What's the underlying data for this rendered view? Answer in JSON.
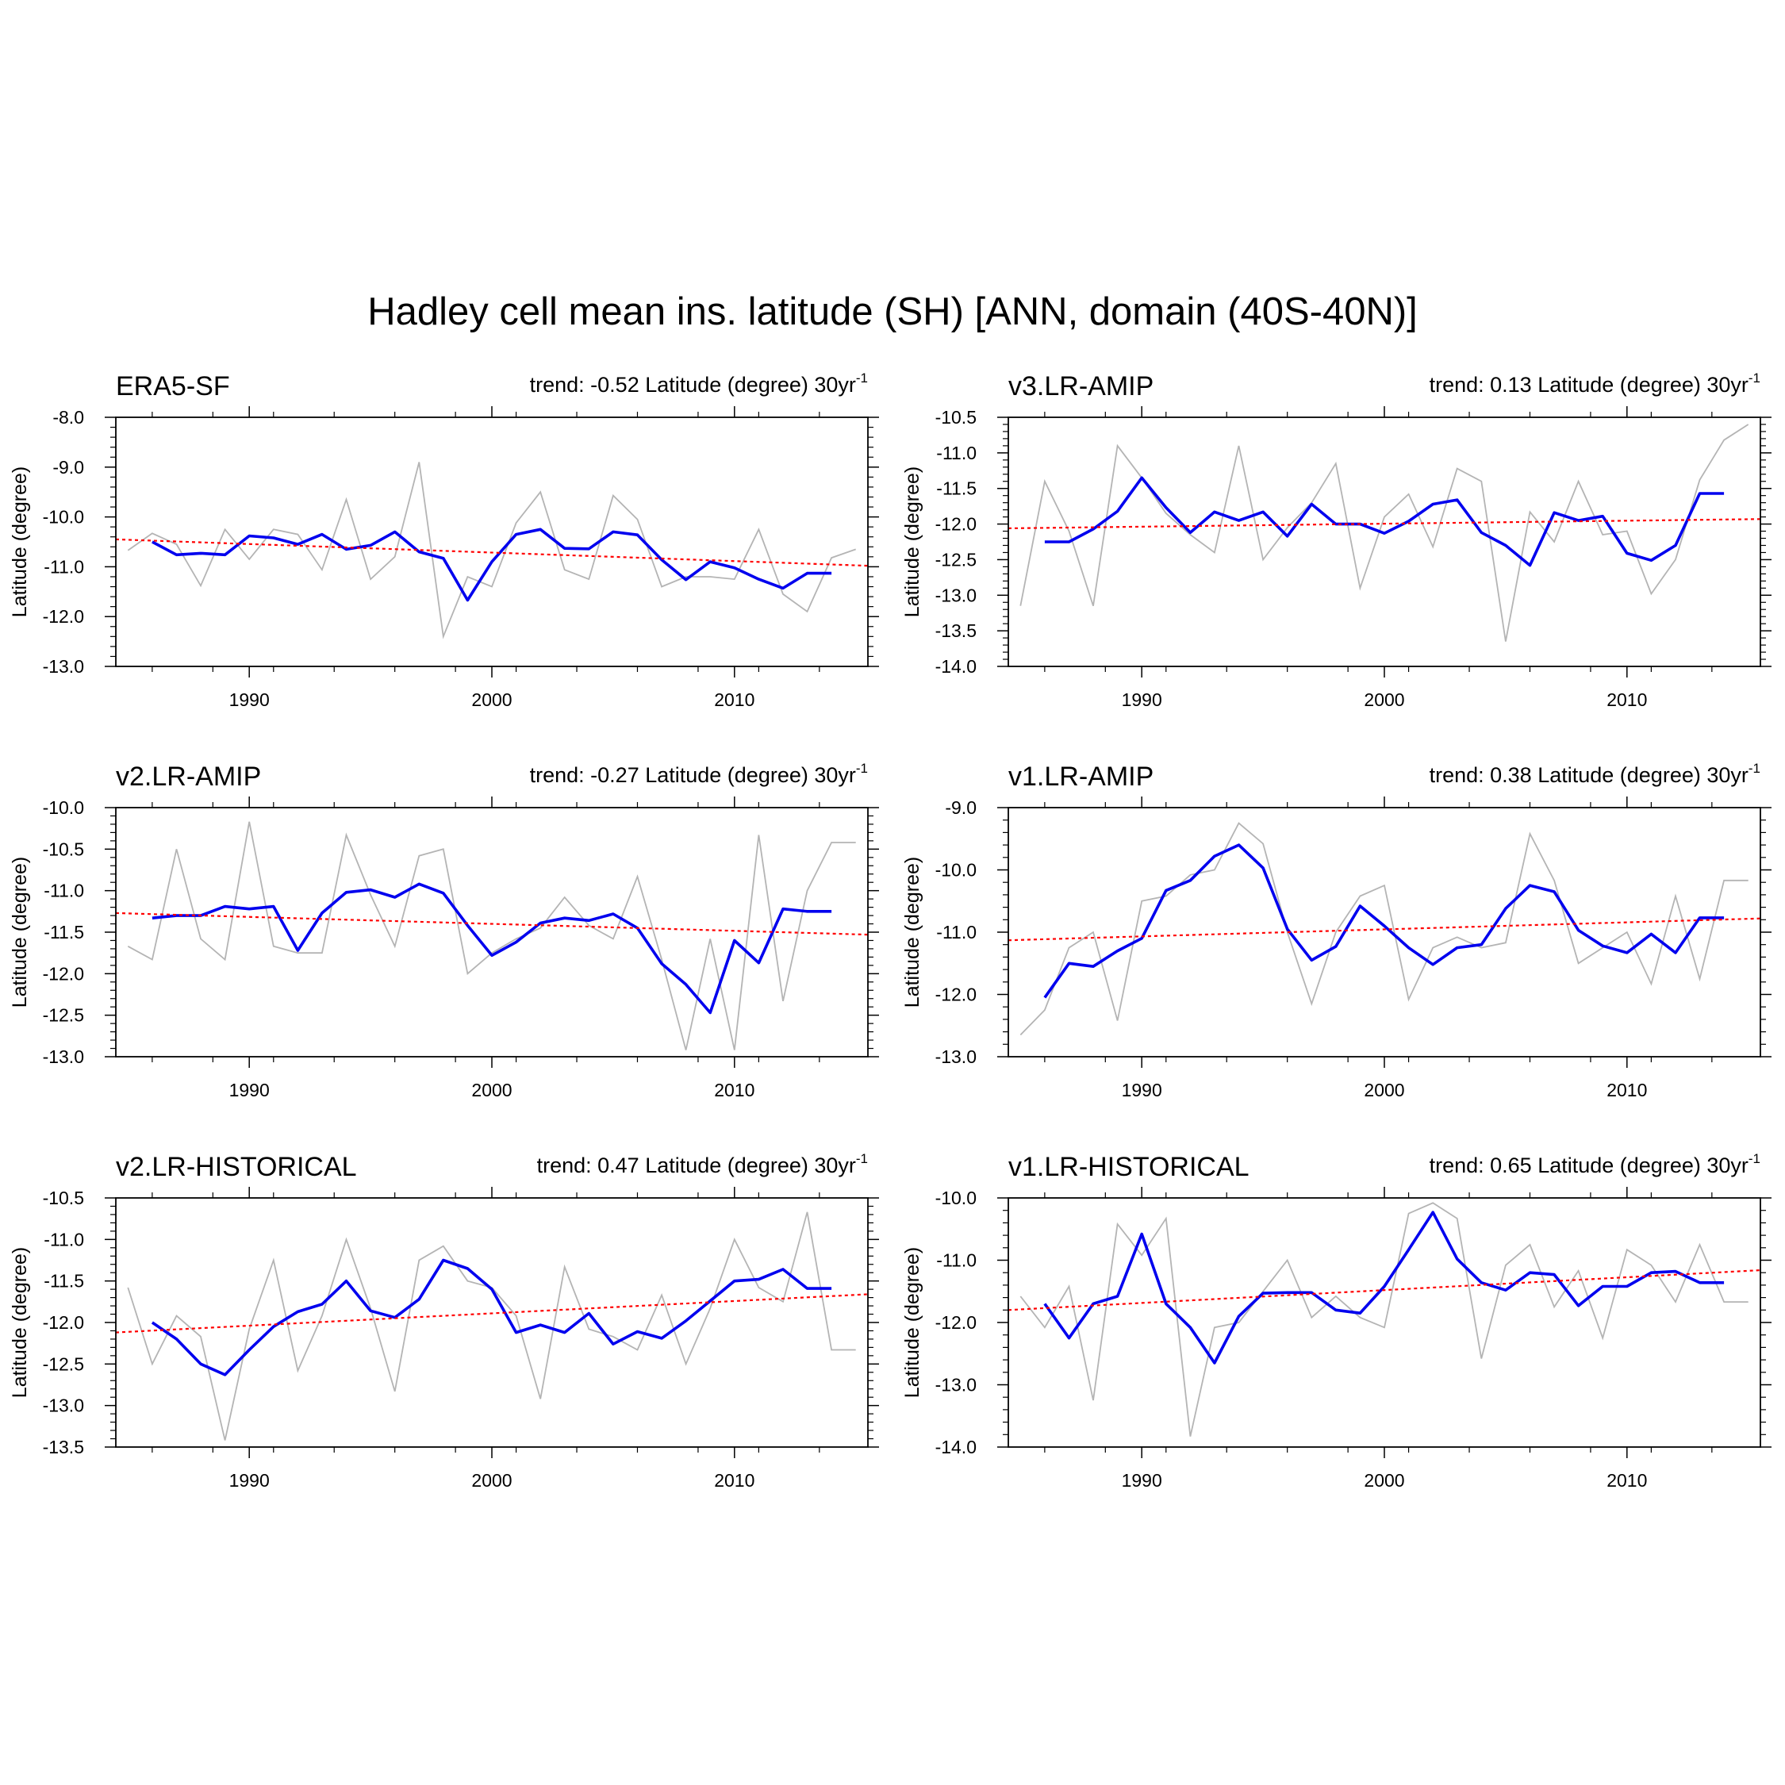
{
  "title": "Hadley cell mean ins. latitude (SH) [ANN, domain (40S-40N)]",
  "colors": {
    "smoothed": "#0000ee",
    "annual": "#b4b4b4",
    "trend": "#ff0000"
  },
  "chart_data": [
    {
      "type": "line",
      "name": "ERA5-SF",
      "trend_label": "trend: -0.52 Latitude (degree) 30yr",
      "trend_sup": "-1",
      "ylabel": "Latitude (degree)",
      "xlim": [
        1984.5,
        2015.5
      ],
      "ylim": [
        -13.0,
        -8.0
      ],
      "ystep": 1.0,
      "ytick_labels": [
        "-8.0",
        "-9.0",
        "-10.0",
        "-11.0",
        "-12.0",
        "-13.0"
      ],
      "xticks": [
        1990,
        2000,
        2010
      ],
      "xtick_labels": [
        "1990",
        "2000",
        "2010"
      ],
      "annual": {
        "x": [
          1985,
          1986,
          1987,
          1988,
          1989,
          1990,
          1991,
          1992,
          1993,
          1994,
          1995,
          1996,
          1997,
          1998,
          1999,
          2000,
          2001,
          2002,
          2003,
          2004,
          2005,
          2006,
          2007,
          2008,
          2009,
          2010,
          2011,
          2012,
          2013,
          2014,
          2015
        ],
        "y": [
          -10.67,
          -10.33,
          -10.55,
          -11.38,
          -10.25,
          -10.85,
          -10.25,
          -10.35,
          -11.06,
          -9.65,
          -11.25,
          -10.8,
          -8.9,
          -12.4,
          -11.2,
          -11.4,
          -10.12,
          -9.5,
          -11.06,
          -11.25,
          -9.57,
          -10.05,
          -11.4,
          -11.2,
          -11.2,
          -11.25,
          -10.25,
          -11.55,
          -11.9,
          -10.82,
          -10.65
        ]
      },
      "smoothed": {
        "x": [
          1986,
          1987,
          1988,
          1989,
          1990,
          1991,
          1992,
          1993,
          1994,
          1995,
          1996,
          1997,
          1998,
          1999,
          2000,
          2001,
          2002,
          2003,
          2004,
          2005,
          2006,
          2007,
          2008,
          2009,
          2010,
          2011,
          2012,
          2013,
          2014
        ],
        "y": [
          -10.5,
          -10.76,
          -10.73,
          -10.76,
          -10.38,
          -10.42,
          -10.55,
          -10.35,
          -10.65,
          -10.57,
          -10.3,
          -10.7,
          -10.83,
          -11.67,
          -10.9,
          -10.35,
          -10.25,
          -10.63,
          -10.64,
          -10.3,
          -10.36,
          -10.86,
          -11.26,
          -10.9,
          -11.02,
          -11.25,
          -11.43,
          -11.13,
          -11.13
        ]
      },
      "trend": {
        "x": [
          1984.5,
          2015.5
        ],
        "y": [
          -10.45,
          -10.98
        ]
      }
    },
    {
      "type": "line",
      "name": "v3.LR-AMIP",
      "trend_label": "trend: 0.13 Latitude (degree) 30yr",
      "trend_sup": "-1",
      "ylabel": "Latitude (degree)",
      "xlim": [
        1984.5,
        2015.5
      ],
      "ylim": [
        -14.0,
        -10.5
      ],
      "ystep": 0.5,
      "ytick_labels": [
        "-10.5",
        "-11.0",
        "-11.5",
        "-12.0",
        "-12.5",
        "-13.0",
        "-13.5",
        "-14.0"
      ],
      "xticks": [
        1990,
        2000,
        2010
      ],
      "xtick_labels": [
        "1990",
        "2000",
        "2010"
      ],
      "annual": {
        "x": [
          1985,
          1986,
          1987,
          1988,
          1989,
          1990,
          1991,
          1992,
          1993,
          1994,
          1995,
          1996,
          1997,
          1998,
          1999,
          2000,
          2001,
          2002,
          2003,
          2004,
          2005,
          2006,
          2007,
          2008,
          2009,
          2010,
          2011,
          2012,
          2013,
          2014,
          2015
        ],
        "y": [
          -13.15,
          -11.4,
          -12.1,
          -13.15,
          -10.9,
          -11.35,
          -11.85,
          -12.15,
          -12.4,
          -10.9,
          -12.5,
          -12.05,
          -11.7,
          -11.15,
          -12.9,
          -11.9,
          -11.58,
          -12.32,
          -11.22,
          -11.4,
          -13.65,
          -11.83,
          -12.25,
          -11.4,
          -12.15,
          -12.1,
          -12.98,
          -12.5,
          -11.38,
          -10.82,
          -10.6
        ]
      },
      "smoothed": {
        "x": [
          1986,
          1987,
          1988,
          1989,
          1990,
          1991,
          1992,
          1993,
          1994,
          1995,
          1996,
          1997,
          1998,
          1999,
          2000,
          2001,
          2002,
          2003,
          2004,
          2005,
          2006,
          2007,
          2008,
          2009,
          2010,
          2011,
          2012,
          2013,
          2014
        ],
        "y": [
          -12.25,
          -12.25,
          -12.07,
          -11.82,
          -11.35,
          -11.77,
          -12.12,
          -11.83,
          -11.95,
          -11.83,
          -12.17,
          -11.72,
          -12.0,
          -12.0,
          -12.13,
          -11.96,
          -11.72,
          -11.66,
          -12.12,
          -12.3,
          -12.58,
          -11.84,
          -11.95,
          -11.89,
          -12.41,
          -12.51,
          -12.3,
          -11.57,
          -11.57
        ]
      },
      "trend": {
        "x": [
          1984.5,
          2015.5
        ],
        "y": [
          -12.06,
          -11.93
        ]
      }
    },
    {
      "type": "line",
      "name": "v2.LR-AMIP",
      "trend_label": "trend: -0.27 Latitude (degree) 30yr",
      "trend_sup": "-1",
      "ylabel": "Latitude (degree)",
      "xlim": [
        1984.5,
        2015.5
      ],
      "ylim": [
        -13.0,
        -10.0
      ],
      "ystep": 0.5,
      "ytick_labels": [
        "-10.0",
        "-10.5",
        "-11.0",
        "-11.5",
        "-12.0",
        "-12.5",
        "-13.0"
      ],
      "xticks": [
        1990,
        2000,
        2010
      ],
      "xtick_labels": [
        "1990",
        "2000",
        "2010"
      ],
      "annual": {
        "x": [
          1985,
          1986,
          1987,
          1988,
          1989,
          1990,
          1991,
          1992,
          1993,
          1994,
          1995,
          1996,
          1997,
          1998,
          1999,
          2000,
          2001,
          2002,
          2003,
          2004,
          2005,
          2006,
          2007,
          2008,
          2009,
          2010,
          2011,
          2012,
          2013,
          2014,
          2015
        ],
        "y": [
          -11.67,
          -11.83,
          -10.5,
          -11.58,
          -11.83,
          -10.17,
          -11.67,
          -11.75,
          -11.75,
          -10.33,
          -11.05,
          -11.67,
          -10.58,
          -10.5,
          -12.0,
          -11.75,
          -11.58,
          -11.45,
          -11.08,
          -11.42,
          -11.58,
          -10.83,
          -11.83,
          -12.92,
          -11.58,
          -12.92,
          -10.33,
          -12.33,
          -11.0,
          -10.42,
          -10.42
        ]
      },
      "smoothed": {
        "x": [
          1986,
          1987,
          1988,
          1989,
          1990,
          1991,
          1992,
          1993,
          1994,
          1995,
          1996,
          1997,
          1998,
          1999,
          2000,
          2001,
          2002,
          2003,
          2004,
          2005,
          2006,
          2007,
          2008,
          2009,
          2010,
          2011,
          2012,
          2013,
          2014
        ],
        "y": [
          -11.33,
          -11.3,
          -11.3,
          -11.19,
          -11.22,
          -11.19,
          -11.72,
          -11.27,
          -11.02,
          -10.99,
          -11.08,
          -10.92,
          -11.03,
          -11.42,
          -11.78,
          -11.62,
          -11.39,
          -11.33,
          -11.36,
          -11.28,
          -11.45,
          -11.88,
          -12.13,
          -12.47,
          -11.6,
          -11.87,
          -11.22,
          -11.25,
          -11.25
        ]
      },
      "trend": {
        "x": [
          1984.5,
          2015.5
        ],
        "y": [
          -11.27,
          -11.53
        ]
      }
    },
    {
      "type": "line",
      "name": "v1.LR-AMIP",
      "trend_label": "trend: 0.38 Latitude (degree) 30yr",
      "trend_sup": "-1",
      "ylabel": "Latitude (degree)",
      "xlim": [
        1984.5,
        2015.5
      ],
      "ylim": [
        -13.0,
        -9.0
      ],
      "ystep": 1.0,
      "ytick_labels": [
        "-9.0",
        "-10.0",
        "-11.0",
        "-12.0",
        "-13.0"
      ],
      "xticks": [
        1990,
        2000,
        2010
      ],
      "xtick_labels": [
        "1990",
        "2000",
        "2010"
      ],
      "annual": {
        "x": [
          1985,
          1986,
          1987,
          1988,
          1989,
          1990,
          1991,
          1992,
          1993,
          1994,
          1995,
          1996,
          1997,
          1998,
          1999,
          2000,
          2001,
          2002,
          2003,
          2004,
          2005,
          2006,
          2007,
          2008,
          2009,
          2010,
          2011,
          2012,
          2013,
          2014,
          2015
        ],
        "y": [
          -12.65,
          -12.25,
          -11.25,
          -11.0,
          -12.42,
          -10.5,
          -10.42,
          -10.08,
          -10.0,
          -9.25,
          -9.58,
          -11.0,
          -12.15,
          -11.0,
          -10.42,
          -10.25,
          -12.08,
          -11.25,
          -11.08,
          -11.25,
          -11.17,
          -9.42,
          -10.17,
          -11.5,
          -11.25,
          -11.0,
          -11.83,
          -10.42,
          -11.75,
          -10.17,
          -10.17
        ]
      },
      "smoothed": {
        "x": [
          1986,
          1987,
          1988,
          1989,
          1990,
          1991,
          1992,
          1993,
          1994,
          1995,
          1996,
          1997,
          1998,
          1999,
          2000,
          2001,
          2002,
          2003,
          2004,
          2005,
          2006,
          2007,
          2008,
          2009,
          2010,
          2011,
          2012,
          2013,
          2014
        ],
        "y": [
          -12.05,
          -11.5,
          -11.55,
          -11.3,
          -11.1,
          -10.33,
          -10.17,
          -9.78,
          -9.6,
          -9.97,
          -10.95,
          -11.45,
          -11.23,
          -10.58,
          -10.9,
          -11.25,
          -11.52,
          -11.25,
          -11.2,
          -10.62,
          -10.25,
          -10.35,
          -10.97,
          -11.22,
          -11.33,
          -11.03,
          -11.33,
          -10.77,
          -10.77
        ]
      },
      "trend": {
        "x": [
          1984.5,
          2015.5
        ],
        "y": [
          -11.13,
          -10.78
        ]
      }
    },
    {
      "type": "line",
      "name": "v2.LR-HISTORICAL",
      "trend_label": "trend: 0.47 Latitude (degree) 30yr",
      "trend_sup": "-1",
      "ylabel": "Latitude (degree)",
      "xlim": [
        1984.5,
        2015.5
      ],
      "ylim": [
        -13.5,
        -10.5
      ],
      "ystep": 0.5,
      "ytick_labels": [
        "-10.5",
        "-11.0",
        "-11.5",
        "-12.0",
        "-12.5",
        "-13.0",
        "-13.5"
      ],
      "xticks": [
        1990,
        2000,
        2010
      ],
      "xtick_labels": [
        "1990",
        "2000",
        "2010"
      ],
      "annual": {
        "x": [
          1985,
          1986,
          1987,
          1988,
          1989,
          1990,
          1991,
          1992,
          1993,
          1994,
          1995,
          1996,
          1997,
          1998,
          1999,
          2000,
          2001,
          2002,
          2003,
          2004,
          2005,
          2006,
          2007,
          2008,
          2009,
          2010,
          2011,
          2012,
          2013,
          2014,
          2015
        ],
        "y": [
          -11.58,
          -12.5,
          -11.92,
          -12.17,
          -13.42,
          -12.08,
          -11.25,
          -12.58,
          -11.92,
          -11.0,
          -11.83,
          -12.83,
          -11.25,
          -11.08,
          -11.5,
          -11.58,
          -11.92,
          -12.92,
          -11.33,
          -12.08,
          -12.17,
          -12.33,
          -11.67,
          -12.5,
          -11.83,
          -11.0,
          -11.58,
          -11.75,
          -10.67,
          -12.33,
          -12.33
        ]
      },
      "smoothed": {
        "x": [
          1986,
          1987,
          1988,
          1989,
          1990,
          1991,
          1992,
          1993,
          1994,
          1995,
          1996,
          1997,
          1998,
          1999,
          2000,
          2001,
          2002,
          2003,
          2004,
          2005,
          2006,
          2007,
          2008,
          2009,
          2010,
          2011,
          2012,
          2013,
          2014
        ],
        "y": [
          -12.0,
          -12.2,
          -12.5,
          -12.63,
          -12.33,
          -12.05,
          -11.87,
          -11.78,
          -11.5,
          -11.86,
          -11.94,
          -11.72,
          -11.25,
          -11.35,
          -11.6,
          -12.12,
          -12.03,
          -12.12,
          -11.89,
          -12.26,
          -12.11,
          -12.19,
          -11.98,
          -11.74,
          -11.5,
          -11.48,
          -11.36,
          -11.59,
          -11.59
        ]
      },
      "trend": {
        "x": [
          1984.5,
          2015.5
        ],
        "y": [
          -12.12,
          -11.66
        ]
      }
    },
    {
      "type": "line",
      "name": "v1.LR-HISTORICAL",
      "trend_label": "trend: 0.65 Latitude (degree) 30yr",
      "trend_sup": "-1",
      "ylabel": "Latitude (degree)",
      "xlim": [
        1984.5,
        2015.5
      ],
      "ylim": [
        -14.0,
        -10.0
      ],
      "ystep": 1.0,
      "ytick_labels": [
        "-10.0",
        "-11.0",
        "-12.0",
        "-13.0",
        "-14.0"
      ],
      "xticks": [
        1990,
        2000,
        2010
      ],
      "xtick_labels": [
        "1990",
        "2000",
        "2010"
      ],
      "annual": {
        "x": [
          1985,
          1986,
          1987,
          1988,
          1989,
          1990,
          1991,
          1992,
          1993,
          1994,
          1995,
          1996,
          1997,
          1998,
          1999,
          2000,
          2001,
          2002,
          2003,
          2004,
          2005,
          2006,
          2007,
          2008,
          2009,
          2010,
          2011,
          2012,
          2013,
          2014,
          2015
        ],
        "y": [
          -11.58,
          -12.08,
          -11.42,
          -13.25,
          -10.42,
          -10.92,
          -10.33,
          -13.83,
          -12.08,
          -12.0,
          -11.5,
          -11.0,
          -11.92,
          -11.58,
          -11.92,
          -12.08,
          -10.25,
          -10.08,
          -10.33,
          -12.58,
          -11.08,
          -10.75,
          -11.75,
          -11.17,
          -12.25,
          -10.83,
          -11.08,
          -11.67,
          -10.75,
          -11.67,
          -11.67
        ]
      },
      "smoothed": {
        "x": [
          1986,
          1987,
          1988,
          1989,
          1990,
          1991,
          1992,
          1993,
          1994,
          1995,
          1996,
          1997,
          1998,
          1999,
          2000,
          2001,
          2002,
          2003,
          2004,
          2005,
          2006,
          2007,
          2008,
          2009,
          2010,
          2011,
          2012,
          2013,
          2014
        ],
        "y": [
          -11.7,
          -12.25,
          -11.7,
          -11.58,
          -10.58,
          -11.7,
          -12.08,
          -12.65,
          -11.9,
          -11.53,
          -11.52,
          -11.52,
          -11.8,
          -11.85,
          -11.42,
          -10.83,
          -10.23,
          -10.98,
          -11.36,
          -11.48,
          -11.2,
          -11.23,
          -11.73,
          -11.42,
          -11.42,
          -11.2,
          -11.18,
          -11.36,
          -11.36
        ]
      },
      "trend": {
        "x": [
          1984.5,
          2015.5
        ],
        "y": [
          -11.8,
          -11.16
        ]
      }
    }
  ]
}
